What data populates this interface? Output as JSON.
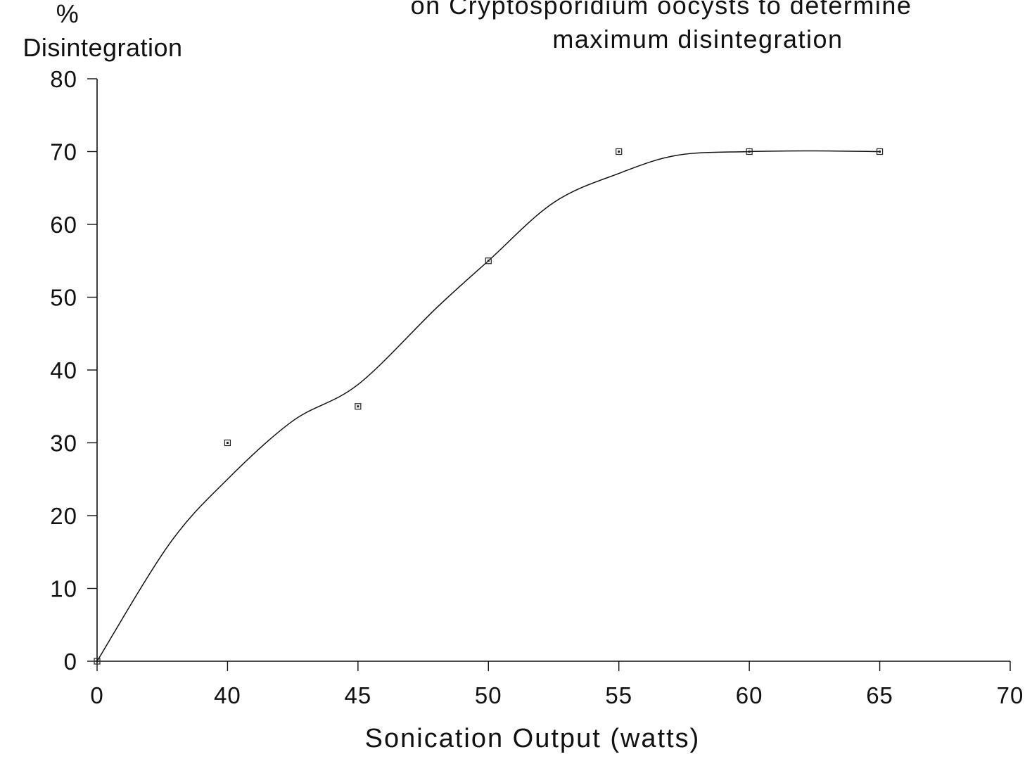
{
  "chart_data": {
    "type": "scatter",
    "title_lines": [
      "on Cryptosporidium oocysts to determine",
      "maximum disintegration"
    ],
    "ylabel_lines": [
      "%",
      "Disintegration"
    ],
    "xlabel": "Sonication Output (watts)",
    "x_tick_labels": [
      "0",
      "40",
      "45",
      "50",
      "55",
      "60",
      "65",
      "70"
    ],
    "y_ticks": [
      0,
      10,
      20,
      30,
      40,
      50,
      60,
      70,
      80
    ],
    "ylim": [
      0,
      80
    ],
    "grid": false,
    "legend": "none",
    "series": [
      {
        "x": [
          "0",
          "40",
          "45",
          "50",
          "55",
          "60",
          "65"
        ],
        "y": [
          0,
          30,
          35,
          55,
          70,
          70,
          70
        ]
      }
    ]
  }
}
